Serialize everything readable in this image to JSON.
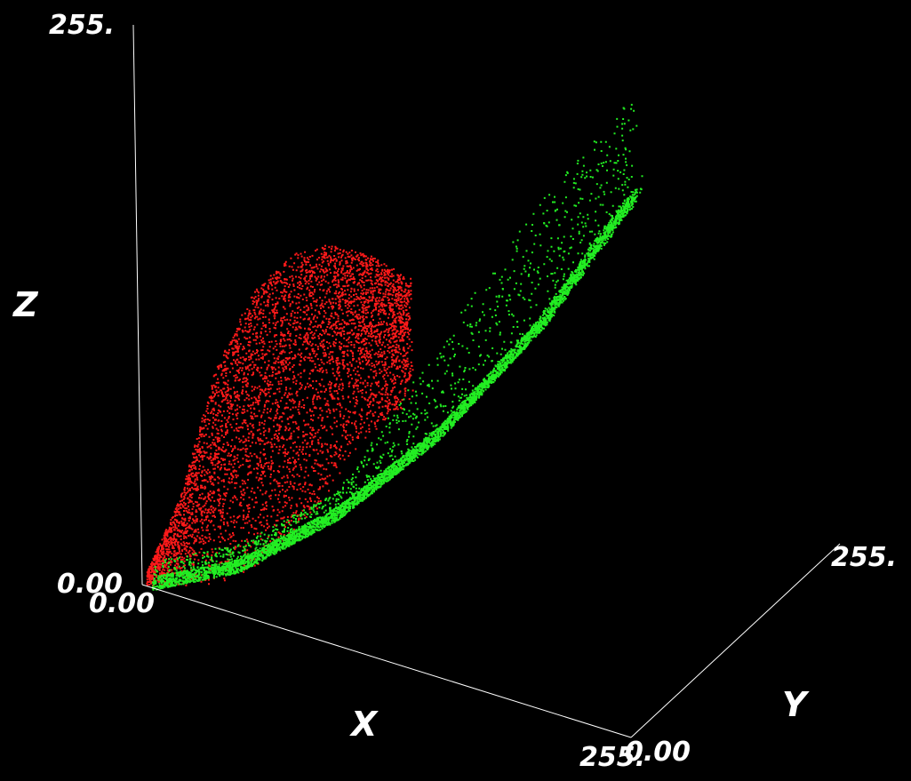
{
  "chart_data": {
    "type": "scatter",
    "projection": "3d",
    "background": "#000000",
    "axes": {
      "x": {
        "label": "X",
        "range": [
          0,
          255
        ],
        "min_label": "0.00",
        "max_label": "255."
      },
      "y": {
        "label": "Y",
        "range": [
          0,
          255
        ],
        "min_label": "0.00",
        "max_label": "255."
      },
      "z": {
        "label": "Z",
        "range": [
          0,
          255
        ],
        "min_label": "0.00",
        "max_label": "255."
      }
    },
    "grid": false,
    "series": [
      {
        "color": "#ff1a1a",
        "point_count": 5000,
        "shape": "sheet",
        "y_fraction_of_x": 0.0,
        "x_range": [
          2,
          140
        ],
        "z_upper_envelope": [
          [
            0,
            2
          ],
          [
            20,
            45
          ],
          [
            40,
            110
          ],
          [
            60,
            150
          ],
          [
            80,
            172
          ],
          [
            100,
            182
          ],
          [
            120,
            182
          ],
          [
            140,
            176
          ]
        ],
        "z_lower_envelope": [
          [
            0,
            0
          ],
          [
            40,
            10
          ],
          [
            80,
            40
          ],
          [
            110,
            90
          ],
          [
            140,
            120
          ]
        ]
      },
      {
        "color": "#22ee22",
        "point_count": 7000,
        "shape": "band",
        "y_fraction_of_x": 0.15,
        "x_range": [
          5,
          245
        ],
        "z_curve": [
          [
            0,
            0
          ],
          [
            50,
            22
          ],
          [
            100,
            58
          ],
          [
            150,
            105
          ],
          [
            200,
            165
          ],
          [
            245,
            232
          ]
        ],
        "z_spread_above": [
          [
            100,
            10
          ],
          [
            150,
            40
          ],
          [
            200,
            55
          ],
          [
            245,
            45
          ]
        ]
      }
    ]
  }
}
